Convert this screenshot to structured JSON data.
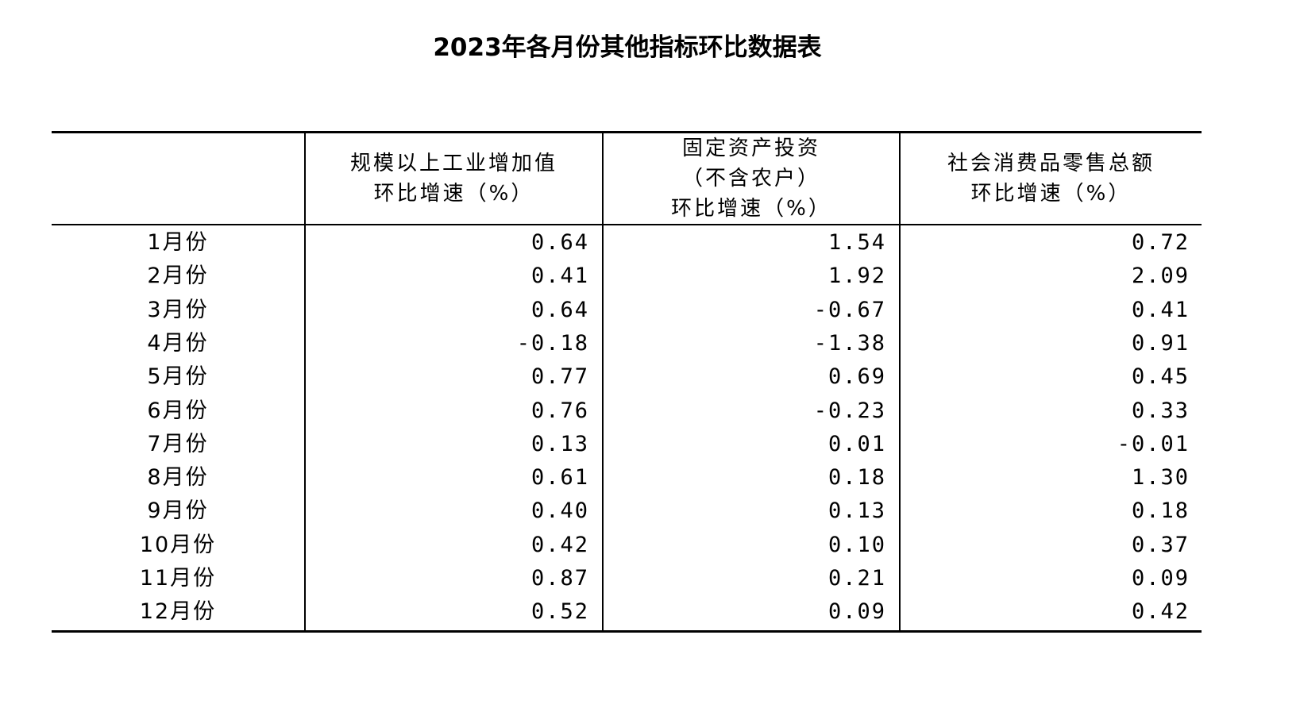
{
  "header": {
    "title": "2023年各月份其他指标环比数据表"
  },
  "table": {
    "columns": [
      [
        "规模以上工业增加值",
        "环比增速（%）"
      ],
      [
        "固定资产投资",
        "（不含农户）",
        "环比增速（%）"
      ],
      [
        "社会消费品零售总额",
        "环比增速（%）"
      ]
    ],
    "rows": [
      [
        "1月份",
        "0.64",
        "1.54",
        "0.72"
      ],
      [
        "2月份",
        "0.41",
        "1.92",
        "2.09"
      ],
      [
        "3月份",
        "0.64",
        "-0.67",
        "0.41"
      ],
      [
        "4月份",
        "-0.18",
        "-1.38",
        "0.91"
      ],
      [
        "5月份",
        "0.77",
        "0.69",
        "0.45"
      ],
      [
        "6月份",
        "0.76",
        "-0.23",
        "0.33"
      ],
      [
        "7月份",
        "0.13",
        "0.01",
        "-0.01"
      ],
      [
        "8月份",
        "0.61",
        "0.18",
        "1.30"
      ],
      [
        "9月份",
        "0.40",
        "0.13",
        "0.18"
      ],
      [
        "10月份",
        "0.42",
        "0.10",
        "0.37"
      ],
      [
        "11月份",
        "0.87",
        "0.21",
        "0.09"
      ],
      [
        "12月份",
        "0.52",
        "0.09",
        "0.42"
      ]
    ]
  }
}
